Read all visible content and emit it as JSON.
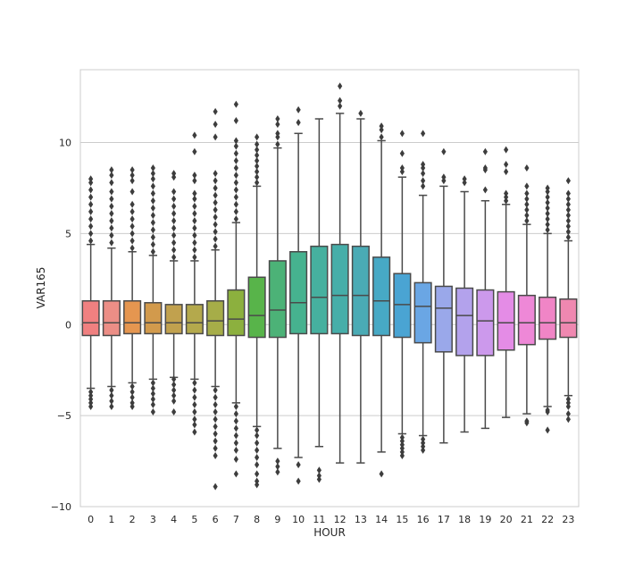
{
  "chart_data": {
    "type": "boxplot",
    "title": "",
    "xlabel": "HOUR",
    "ylabel": "VAR165",
    "ylim": [
      -10,
      14
    ],
    "yticks": [
      -10,
      -5,
      0,
      5,
      10
    ],
    "grid": "horizontal",
    "categories": [
      "0",
      "1",
      "2",
      "3",
      "4",
      "5",
      "6",
      "7",
      "8",
      "9",
      "10",
      "11",
      "12",
      "13",
      "14",
      "15",
      "16",
      "17",
      "18",
      "19",
      "20",
      "21",
      "22",
      "23"
    ],
    "colors": [
      "#f08080",
      "#ec8e86",
      "#e59650",
      "#d29a4c",
      "#c1a14e",
      "#b4a94c",
      "#a6ad48",
      "#8cb03e",
      "#58b44a",
      "#4cb277",
      "#46b28f",
      "#46b09f",
      "#46aea9",
      "#4aabb5",
      "#47a9c5",
      "#4aa4d3",
      "#6aa6e4",
      "#9aa8ea",
      "#b3a2ec",
      "#cc99ec",
      "#e48ce6",
      "#ee88d7",
      "#f085c6",
      "#ef88b0"
    ],
    "boxes": [
      {
        "hour": "0",
        "q1": -0.6,
        "median": 0.1,
        "q3": 1.3,
        "whislo": -3.5,
        "whishi": 4.4,
        "fliers": [
          4.6,
          5.0,
          5.4,
          5.8,
          6.2,
          6.6,
          7.0,
          7.4,
          7.8,
          8.0,
          -3.7,
          -3.9,
          -4.1,
          -4.3,
          -4.5
        ]
      },
      {
        "hour": "1",
        "q1": -0.6,
        "median": 0.1,
        "q3": 1.3,
        "whislo": -3.4,
        "whishi": 4.2,
        "fliers": [
          4.5,
          4.9,
          5.3,
          5.7,
          6.1,
          6.5,
          6.9,
          7.3,
          7.8,
          8.2,
          8.5,
          -3.6,
          -3.9,
          -4.2,
          -4.5
        ]
      },
      {
        "hour": "2",
        "q1": -0.5,
        "median": 0.1,
        "q3": 1.3,
        "whislo": -3.2,
        "whishi": 4.0,
        "fliers": [
          4.2,
          4.6,
          5.0,
          5.4,
          5.8,
          6.2,
          6.6,
          7.3,
          7.9,
          8.2,
          8.5,
          -3.4,
          -3.7,
          -4.0,
          -4.3,
          -4.5
        ]
      },
      {
        "hour": "3",
        "q1": -0.5,
        "median": 0.1,
        "q3": 1.2,
        "whislo": -3.0,
        "whishi": 3.8,
        "fliers": [
          4.0,
          4.4,
          4.8,
          5.2,
          5.6,
          6.0,
          6.4,
          6.8,
          7.2,
          7.6,
          8.0,
          8.3,
          8.6,
          -3.2,
          -3.5,
          -3.8,
          -4.1,
          -4.4,
          -4.8
        ]
      },
      {
        "hour": "4",
        "q1": -0.5,
        "median": 0.1,
        "q3": 1.1,
        "whislo": -2.9,
        "whishi": 3.5,
        "fliers": [
          3.7,
          4.1,
          4.5,
          4.9,
          5.3,
          5.7,
          6.1,
          6.5,
          6.9,
          7.3,
          8.1,
          8.3,
          -3.0,
          -3.3,
          -3.6,
          -3.9,
          -4.2,
          -4.8
        ]
      },
      {
        "hour": "5",
        "q1": -0.5,
        "median": 0.1,
        "q3": 1.1,
        "whislo": -3.0,
        "whishi": 3.5,
        "fliers": [
          3.7,
          4.1,
          4.5,
          4.9,
          5.3,
          5.7,
          6.1,
          6.5,
          6.9,
          7.2,
          7.9,
          8.2,
          9.5,
          10.4,
          -3.2,
          -3.6,
          -4.0,
          -4.4,
          -4.8,
          -5.2,
          -5.5,
          -5.9
        ]
      },
      {
        "hour": "6",
        "q1": -0.6,
        "median": 0.2,
        "q3": 1.3,
        "whislo": -3.4,
        "whishi": 4.1,
        "fliers": [
          4.3,
          4.7,
          5.1,
          5.5,
          5.9,
          6.3,
          6.7,
          7.1,
          7.5,
          7.9,
          8.3,
          10.3,
          11.0,
          11.7,
          -3.6,
          -4.0,
          -4.4,
          -4.8,
          -5.2,
          -5.6,
          -6.0,
          -6.4,
          -6.8,
          -7.2,
          -8.9
        ]
      },
      {
        "hour": "7",
        "q1": -0.6,
        "median": 0.3,
        "q3": 1.9,
        "whislo": -4.3,
        "whishi": 5.6,
        "fliers": [
          5.8,
          6.2,
          6.6,
          7.0,
          7.4,
          7.8,
          8.2,
          8.6,
          9.0,
          9.4,
          9.8,
          10.1,
          11.2,
          12.1,
          -4.5,
          -4.9,
          -5.3,
          -5.7,
          -6.1,
          -6.5,
          -6.9,
          -7.4,
          -8.2
        ]
      },
      {
        "hour": "8",
        "q1": -0.7,
        "median": 0.5,
        "q3": 2.6,
        "whislo": -5.6,
        "whishi": 7.6,
        "fliers": [
          7.8,
          8.1,
          8.4,
          8.7,
          9.0,
          9.3,
          9.6,
          9.9,
          10.3,
          -5.8,
          -6.1,
          -6.5,
          -6.9,
          -7.3,
          -7.7,
          -8.2,
          -8.6,
          -8.8
        ]
      },
      {
        "hour": "9",
        "q1": -0.7,
        "median": 0.8,
        "q3": 3.5,
        "whislo": -6.8,
        "whishi": 9.7,
        "fliers": [
          9.9,
          10.3,
          10.5,
          11.0,
          11.3,
          -7.5,
          -7.8,
          -8.1
        ]
      },
      {
        "hour": "10",
        "q1": -0.5,
        "median": 1.2,
        "q3": 4.0,
        "whislo": -7.3,
        "whishi": 10.5,
        "fliers": [
          11.1,
          11.8,
          -7.7,
          -8.6
        ]
      },
      {
        "hour": "11",
        "q1": -0.5,
        "median": 1.5,
        "q3": 4.3,
        "whislo": -6.7,
        "whishi": 11.3,
        "fliers": [
          -8.0,
          -8.3,
          -8.5
        ]
      },
      {
        "hour": "12",
        "q1": -0.5,
        "median": 1.6,
        "q3": 4.4,
        "whislo": -7.6,
        "whishi": 11.6,
        "fliers": [
          12.0,
          12.3,
          13.1
        ]
      },
      {
        "hour": "13",
        "q1": -0.6,
        "median": 1.6,
        "q3": 4.3,
        "whislo": -7.6,
        "whishi": 11.3,
        "fliers": [
          11.6
        ]
      },
      {
        "hour": "14",
        "q1": -0.6,
        "median": 1.3,
        "q3": 3.7,
        "whislo": -7.0,
        "whishi": 10.1,
        "fliers": [
          10.3,
          10.7,
          10.9,
          -8.2
        ]
      },
      {
        "hour": "15",
        "q1": -0.7,
        "median": 1.1,
        "q3": 2.8,
        "whislo": -6.0,
        "whishi": 8.1,
        "fliers": [
          8.4,
          8.6,
          9.4,
          10.5,
          -6.2,
          -6.4,
          -6.6,
          -6.8,
          -7.0,
          -7.2
        ]
      },
      {
        "hour": "16",
        "q1": -1.0,
        "median": 1.0,
        "q3": 2.3,
        "whislo": -6.1,
        "whishi": 7.1,
        "fliers": [
          7.6,
          7.9,
          8.3,
          8.6,
          8.8,
          10.5,
          -6.3,
          -6.5,
          -6.7,
          -6.9
        ]
      },
      {
        "hour": "17",
        "q1": -1.5,
        "median": 0.9,
        "q3": 2.1,
        "whislo": -6.5,
        "whishi": 7.6,
        "fliers": [
          7.9,
          8.1,
          9.5
        ]
      },
      {
        "hour": "18",
        "q1": -1.7,
        "median": 0.5,
        "q3": 2.0,
        "whislo": -5.9,
        "whishi": 7.3,
        "fliers": [
          7.8,
          8.0
        ]
      },
      {
        "hour": "19",
        "q1": -1.7,
        "median": 0.2,
        "q3": 1.9,
        "whislo": -5.7,
        "whishi": 6.8,
        "fliers": [
          7.4,
          8.5,
          8.6,
          9.5
        ]
      },
      {
        "hour": "20",
        "q1": -1.4,
        "median": 0.1,
        "q3": 1.8,
        "whislo": -5.1,
        "whishi": 6.6,
        "fliers": [
          6.8,
          7.0,
          7.2,
          8.4,
          8.8,
          9.6
        ]
      },
      {
        "hour": "21",
        "q1": -1.1,
        "median": 0.1,
        "q3": 1.6,
        "whislo": -4.9,
        "whishi": 5.5,
        "fliers": [
          5.7,
          6.0,
          6.3,
          6.6,
          6.9,
          7.2,
          7.6,
          8.6,
          -5.3,
          -5.4
        ]
      },
      {
        "hour": "22",
        "q1": -0.8,
        "median": 0.1,
        "q3": 1.5,
        "whislo": -4.5,
        "whishi": 5.0,
        "fliers": [
          5.2,
          5.5,
          5.8,
          6.1,
          6.4,
          6.7,
          7.0,
          7.3,
          7.5,
          -4.7,
          -4.8,
          -5.8
        ]
      },
      {
        "hour": "23",
        "q1": -0.7,
        "median": 0.1,
        "q3": 1.4,
        "whislo": -3.9,
        "whishi": 4.6,
        "fliers": [
          4.8,
          5.1,
          5.4,
          5.7,
          6.0,
          6.3,
          6.6,
          6.9,
          7.2,
          7.9,
          -4.1,
          -4.3,
          -4.5,
          -4.9,
          -5.2
        ]
      }
    ]
  }
}
